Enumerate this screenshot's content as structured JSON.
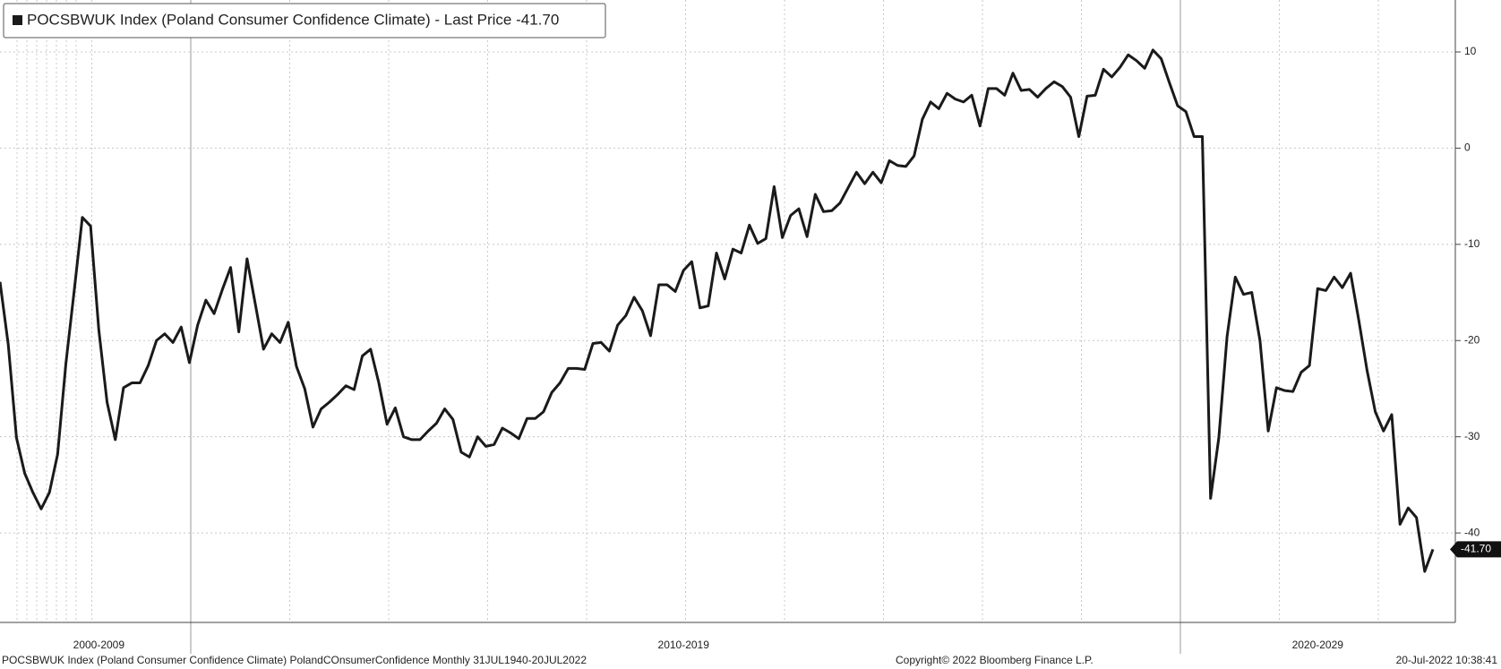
{
  "chart_data": {
    "type": "line",
    "title": "POCSBWUK Index (Poland Consumer Confidence Climate) - Last Price -41.70",
    "last_price_label": "-41.70",
    "footer_left": "POCSBWUK Index (Poland Consumer Confidence Climate) PolandCOnsumerConfidence  Monthly 31JUL1940-20JUL2022",
    "footer_center": "Copyright© 2022 Bloomberg Finance L.P.",
    "footer_right": "20-Jul-2022 10:38:41",
    "categories": [
      null,
      null,
      null,
      null,
      null,
      null,
      null,
      null,
      null,
      null,
      null,
      null,
      "2000-2009",
      null,
      null,
      null,
      null,
      null,
      null,
      null,
      null,
      null,
      null,
      null,
      null,
      null,
      null,
      null,
      null,
      null,
      null,
      null,
      null,
      null,
      null,
      null,
      null,
      null,
      null,
      null,
      null,
      null,
      null,
      null,
      null,
      null,
      null,
      null,
      null,
      null,
      null,
      null,
      null,
      null,
      null,
      null,
      null,
      null,
      null,
      null,
      null,
      null,
      null,
      null,
      null,
      null,
      null,
      null,
      null,
      null,
      null,
      null,
      null,
      null,
      null,
      null,
      null,
      null,
      null,
      null,
      null,
      null,
      null,
      "2010-2019",
      null,
      null,
      null,
      null,
      null,
      null,
      null,
      null,
      null,
      null,
      null,
      null,
      null,
      null,
      null,
      null,
      null,
      null,
      null,
      null,
      null,
      null,
      null,
      null,
      null,
      null,
      null,
      null,
      null,
      null,
      null,
      null,
      null,
      null,
      null,
      null,
      null,
      null,
      null,
      null,
      null,
      null,
      null,
      null,
      null,
      null,
      null,
      null,
      null,
      null,
      null,
      null,
      null,
      null,
      null,
      null,
      null,
      null,
      null,
      null,
      null,
      null,
      null,
      null,
      null,
      null,
      null,
      null,
      null,
      null,
      null,
      null,
      null,
      null,
      null,
      null,
      "2020-2029",
      null,
      null,
      null,
      null,
      null,
      null,
      null,
      null,
      null,
      null,
      null,
      null,
      null,
      null
    ],
    "series": [
      {
        "name": "POCSBWUK Index",
        "color": "#1a1a1a",
        "values": [
          -13.9,
          -20.4,
          -30.1,
          -33.8,
          -35.8,
          -37.5,
          -35.8,
          -31.8,
          -22.4,
          -14.9,
          -7.2,
          -8.1,
          -18.9,
          -26.4,
          -30.3,
          -24.9,
          -24.4,
          -24.4,
          -22.6,
          -20,
          -19.3,
          -20.2,
          -18.6,
          -22.3,
          -18.4,
          -15.8,
          -17.2,
          -14.7,
          -12.4,
          -19.1,
          -11.5,
          -16.2,
          -20.9,
          -19.3,
          -20.2,
          -18.1,
          -22.7,
          -25,
          -29,
          -27.1,
          -26.4,
          -25.6,
          -24.7,
          -25.1,
          -21.6,
          -20.9,
          -24.4,
          -28.7,
          -27,
          -30,
          -30.3,
          -30.3,
          -29.4,
          -28.6,
          -27.1,
          -28.2,
          -31.6,
          -32.1,
          -30,
          -31,
          -30.8,
          -29.1,
          -29.6,
          -30.2,
          -28.1,
          -28.1,
          -27.4,
          -25.4,
          -24.4,
          -22.9,
          -22.9,
          -23,
          -20.3,
          -20.2,
          -21.1,
          -18.4,
          -17.4,
          -15.5,
          -16.9,
          -19.5,
          -14.2,
          -14.2,
          -14.9,
          -12.7,
          -11.8,
          -16.6,
          -16.4,
          -10.9,
          -13.6,
          -10.5,
          -10.9,
          -8,
          -9.9,
          -9.4,
          -4,
          -9.3,
          -7,
          -6.3,
          -9.2,
          -4.8,
          -6.6,
          -6.5,
          -5.7,
          -4.1,
          -2.5,
          -3.7,
          -2.5,
          -3.6,
          -1.3,
          -1.8,
          -1.9,
          -0.8,
          3,
          4.8,
          4.1,
          5.7,
          5.1,
          4.8,
          5.5,
          2.3,
          6.2,
          6.2,
          5.5,
          7.8,
          6,
          6.1,
          5.3,
          6.2,
          6.9,
          6.4,
          5.3,
          1.2,
          5.4,
          5.5,
          8.2,
          7.4,
          8.4,
          9.7,
          9.1,
          8.3,
          10.2,
          9.3,
          6.8,
          4.4,
          3.8,
          1.2,
          1.2,
          -36.4,
          -30.1,
          -19.6,
          -13.4,
          -15.2,
          -15,
          -20,
          -29.4,
          -24.9,
          -25.2,
          -25.3,
          -23.3,
          -22.6,
          -14.6,
          -14.8,
          -13.4,
          -14.5,
          -13,
          -17.9,
          -23.1,
          -27.4,
          -29.4,
          -27.7,
          -39.1,
          -37.4,
          -38.4,
          -44,
          -41.7
        ]
      }
    ],
    "ylim": [
      -49.3,
      15.4
    ],
    "yticks": [
      -40,
      -30,
      -20,
      -10,
      0,
      10
    ],
    "grid": true
  }
}
